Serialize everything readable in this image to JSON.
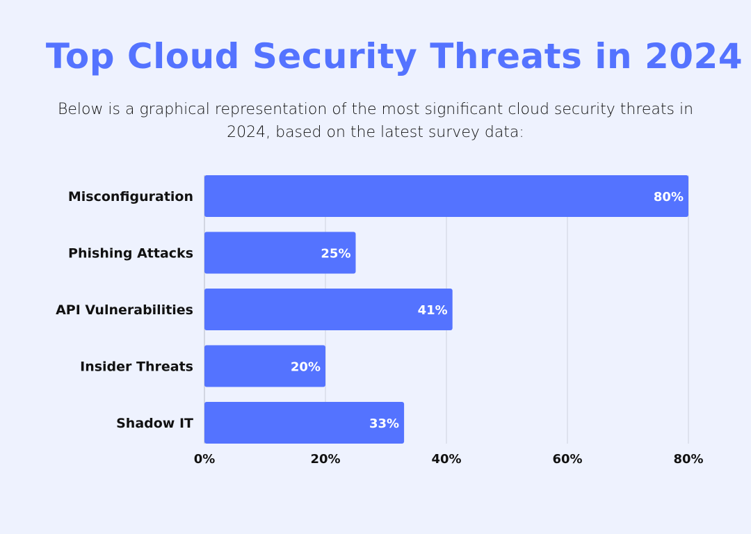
{
  "chart_data": {
    "type": "bar",
    "orientation": "horizontal",
    "title": "Top Cloud Security Threats in 2024",
    "subtitle": "Below is a graphical representation of the most significant cloud security threats in 2024, based on the latest survey data:",
    "categories": [
      "Misconfiguration",
      "Phishing Attacks",
      "API Vulnerabilities",
      "Insider Threats",
      "Shadow IT"
    ],
    "values": [
      80,
      25,
      41,
      20,
      33
    ],
    "data_labels": [
      "80%",
      "25%",
      "41%",
      "20%",
      "33%"
    ],
    "xlim": [
      0,
      80
    ],
    "xticks": [
      0,
      20,
      40,
      60,
      80
    ],
    "xtick_labels": [
      "0%",
      "20%",
      "40%",
      "60%",
      "80%"
    ],
    "grid": true,
    "colors": {
      "bar": "#5473ff",
      "title": "#5473ff",
      "background": "#eef2fe",
      "grid": "#d9dde8"
    }
  }
}
